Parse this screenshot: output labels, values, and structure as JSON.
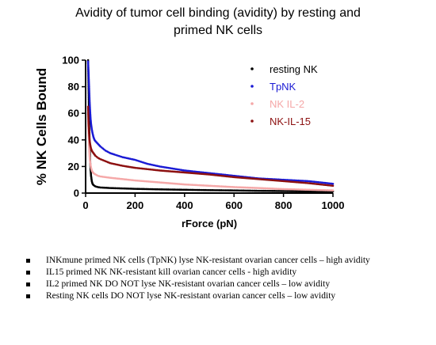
{
  "chart_data": {
    "type": "scatter",
    "title_line1": "Avidity of tumor cell binding (avidity) by resting and",
    "title_line2": "primed NK cells",
    "xlabel": "rForce (pN)",
    "ylabel": "% NK Cells Bound",
    "xlim": [
      0,
      1000
    ],
    "ylim": [
      0,
      100
    ],
    "xticks": [
      "0",
      "200",
      "400",
      "600",
      "800",
      "1000"
    ],
    "yticks": [
      "0",
      "20",
      "40",
      "60",
      "80",
      "100"
    ],
    "legend_position": "top-right",
    "series": [
      {
        "name": "resting NK",
        "color": "#000000",
        "x": [
          10,
          12,
          14,
          16,
          18,
          20,
          22,
          25,
          28,
          32,
          36,
          40,
          50,
          60,
          80,
          100,
          150,
          200,
          300,
          400,
          500,
          600,
          700,
          800,
          900,
          1000
        ],
        "y": [
          100,
          80,
          55,
          38,
          26,
          18,
          13,
          9,
          7,
          6,
          5.5,
          5,
          4.5,
          4.2,
          4,
          3.8,
          3.5,
          3.2,
          2.8,
          2.5,
          2.2,
          2,
          1.7,
          1.5,
          1.3,
          1.2
        ]
      },
      {
        "name": "TpNK",
        "color": "#1a1ad4",
        "x": [
          10,
          12,
          14,
          16,
          18,
          20,
          22,
          25,
          28,
          32,
          36,
          40,
          50,
          60,
          80,
          100,
          150,
          200,
          250,
          300,
          400,
          500,
          600,
          700,
          800,
          900,
          1000
        ],
        "y": [
          99,
          90,
          80,
          70,
          62,
          56,
          52,
          48,
          45,
          42,
          40,
          39,
          37,
          35,
          32,
          30,
          27,
          25,
          22,
          20,
          17,
          15,
          13,
          11,
          10,
          9,
          7
        ]
      },
      {
        "name": "NK IL-2",
        "color": "#f5a8a8",
        "x": [
          10,
          12,
          14,
          16,
          18,
          20,
          22,
          25,
          28,
          32,
          36,
          40,
          50,
          60,
          80,
          100,
          150,
          200,
          300,
          400,
          500,
          600,
          700,
          800,
          900,
          1000
        ],
        "y": [
          60,
          45,
          35,
          28,
          24,
          21,
          19,
          17,
          16,
          15,
          14.5,
          14,
          13,
          12.5,
          12,
          11.5,
          10.5,
          9.5,
          8,
          6.5,
          5.5,
          4.5,
          3.8,
          3,
          2.5,
          2
        ]
      },
      {
        "name": "NK-IL-15",
        "color": "#8c1010",
        "x": [
          10,
          12,
          14,
          16,
          18,
          20,
          22,
          25,
          28,
          32,
          36,
          40,
          50,
          60,
          80,
          100,
          150,
          200,
          250,
          300,
          400,
          500,
          600,
          700,
          800,
          900,
          1000
        ],
        "y": [
          65,
          52,
          45,
          40,
          37,
          35,
          33.5,
          32,
          31,
          30,
          29,
          28,
          26.5,
          25.5,
          24,
          22.5,
          20.5,
          19,
          18,
          17,
          15.5,
          14,
          12,
          10.5,
          9,
          7.5,
          5.5
        ]
      }
    ]
  },
  "notes": [
    "INKmune primed NK cells (TpNK) lyse NK-resistant ovarian cancer cells – high avidity",
    "IL15 primed NK NK-resistant kill ovarian cancer cells  - high avidity",
    "IL2 primed NK DO NOT lyse NK-resistant ovarian cancer cells – low avidity",
    "Resting NK cells DO NOT lyse NK-resistant ovarian cancer cells – low avidity"
  ]
}
